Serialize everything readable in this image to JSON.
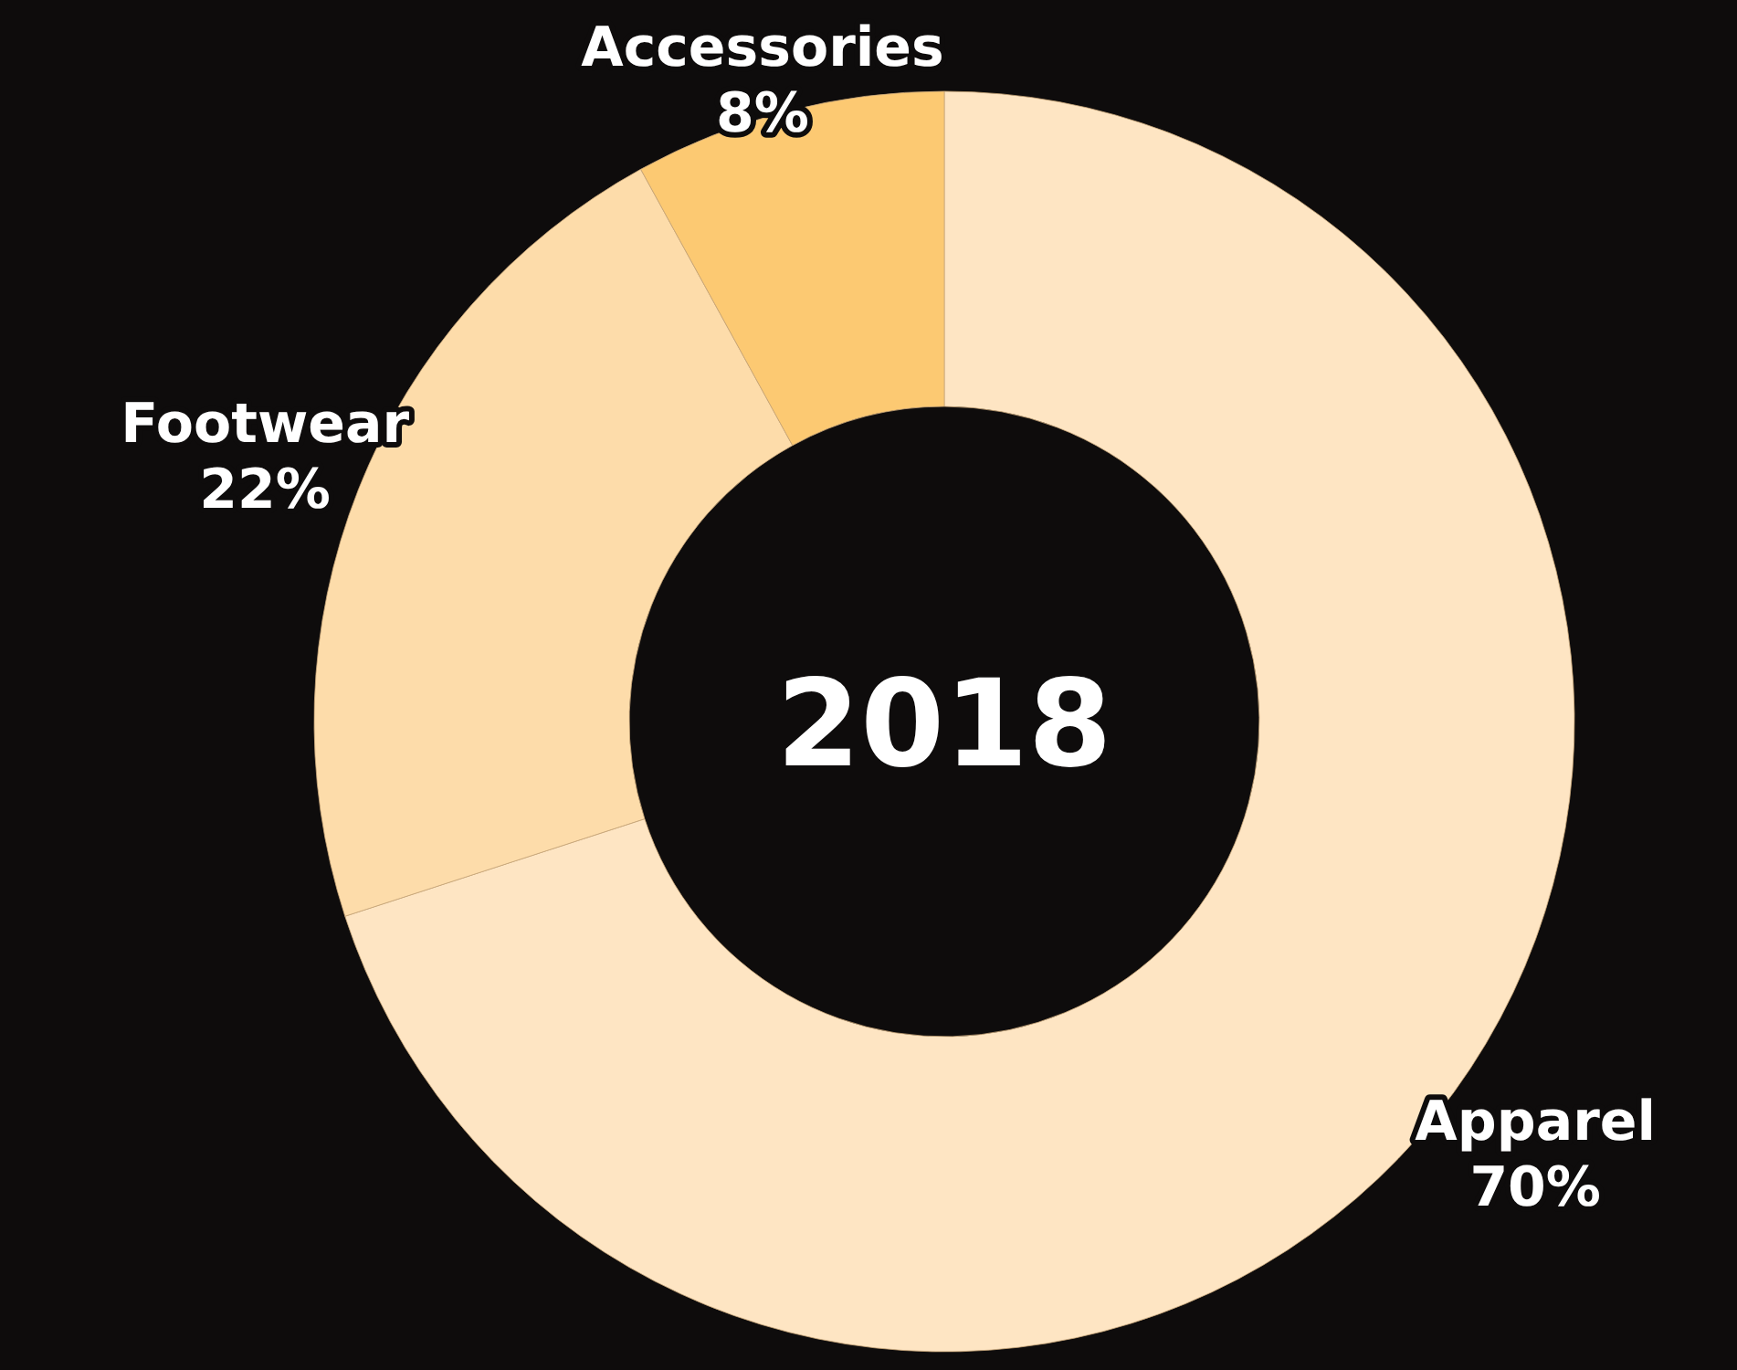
{
  "chart_data": {
    "type": "donut",
    "title": "2018",
    "categories": [
      "Apparel",
      "Footwear",
      "Accessories"
    ],
    "values": [
      70,
      22,
      8
    ],
    "value_labels": [
      "70%",
      "22%",
      "8%"
    ],
    "colors": [
      "#fee5c3",
      "#fddcaa",
      "#fcc972"
    ],
    "legend": false
  }
}
